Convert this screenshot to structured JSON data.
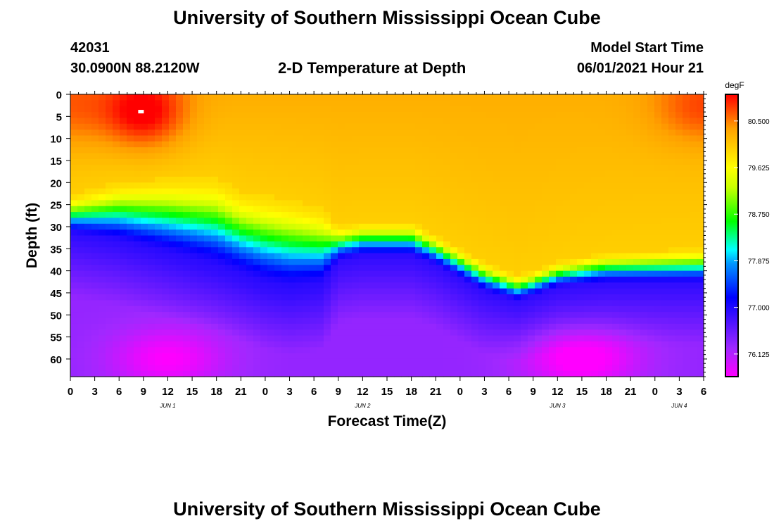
{
  "page": {
    "title_top": "University of Southern Mississippi Ocean Cube",
    "title_bottom": "University of Southern Mississippi Ocean Cube",
    "station_id": "42031",
    "location": "30.0900N  88.2120W",
    "subtitle": "2-D Temperature at Depth",
    "model_label": "Model Start Time",
    "model_time": "06/01/2021 Hour 21"
  },
  "chart_data": {
    "type": "heatmap",
    "title": "2-D Temperature at Depth",
    "xlabel": "Forecast Time(Z)",
    "ylabel": "Depth (ft)",
    "units": "degF",
    "x_range_hours": [
      0,
      78
    ],
    "y_range_ft": [
      0,
      64
    ],
    "x_ticks": [
      "0",
      "3",
      "6",
      "9",
      "12",
      "15",
      "18",
      "21",
      "0",
      "3",
      "6",
      "9",
      "12",
      "15",
      "18",
      "21",
      "0",
      "3",
      "6",
      "9",
      "12",
      "15",
      "18",
      "21",
      "0",
      "3",
      "6"
    ],
    "y_ticks": [
      0,
      5,
      10,
      15,
      20,
      25,
      30,
      35,
      40,
      45,
      50,
      55,
      60
    ],
    "date_labels": [
      {
        "text": "JUN 1",
        "hour": 12
      },
      {
        "text": "JUN 2",
        "hour": 36
      },
      {
        "text": "JUN 3",
        "hour": 60
      },
      {
        "text": "JUN 4",
        "hour": 75
      }
    ],
    "colorbar": {
      "min": 75.7,
      "max": 81.0,
      "tick_labels": [
        "80.500",
        "79.625",
        "78.750",
        "77.875",
        "77.000",
        "76.125"
      ],
      "tick_values": [
        80.5,
        79.625,
        78.75,
        77.875,
        77.0,
        76.125
      ]
    },
    "thermocline_upper_ft": [
      {
        "hour": 0,
        "depth": 23
      },
      {
        "hour": 6,
        "depth": 20
      },
      {
        "hour": 12,
        "depth": 19
      },
      {
        "hour": 18,
        "depth": 19
      },
      {
        "hour": 21,
        "depth": 22
      },
      {
        "hour": 27,
        "depth": 24
      },
      {
        "hour": 31,
        "depth": 26
      },
      {
        "hour": 33,
        "depth": 30
      },
      {
        "hour": 36,
        "depth": 29
      },
      {
        "hour": 42,
        "depth": 29
      },
      {
        "hour": 45,
        "depth": 32
      },
      {
        "hour": 51,
        "depth": 38
      },
      {
        "hour": 55,
        "depth": 41
      },
      {
        "hour": 57,
        "depth": 40
      },
      {
        "hour": 60,
        "depth": 38
      },
      {
        "hour": 66,
        "depth": 36
      },
      {
        "hour": 78,
        "depth": 35
      }
    ],
    "thermocline_lower_ft": [
      {
        "hour": 0,
        "depth": 32
      },
      {
        "hour": 6,
        "depth": 34
      },
      {
        "hour": 12,
        "depth": 37
      },
      {
        "hour": 18,
        "depth": 40
      },
      {
        "hour": 24,
        "depth": 44
      },
      {
        "hour": 27,
        "depth": 45
      },
      {
        "hour": 31,
        "depth": 44
      },
      {
        "hour": 33,
        "depth": 38
      },
      {
        "hour": 36,
        "depth": 37
      },
      {
        "hour": 42,
        "depth": 37
      },
      {
        "hour": 45,
        "depth": 39
      },
      {
        "hour": 51,
        "depth": 45
      },
      {
        "hour": 55,
        "depth": 47
      },
      {
        "hour": 57,
        "depth": 46
      },
      {
        "hour": 60,
        "depth": 44
      },
      {
        "hour": 66,
        "depth": 43
      },
      {
        "hour": 78,
        "depth": 43
      }
    ],
    "warm_spots": [
      {
        "hour": 9,
        "depth": 4,
        "temp": 81.0,
        "radius_h": 5,
        "radius_d": 8
      },
      {
        "hour": 78,
        "depth": 3,
        "temp": 80.6,
        "radius_h": 6,
        "radius_d": 8
      },
      {
        "hour": 0,
        "depth": 3,
        "temp": 80.5,
        "radius_h": 5,
        "radius_d": 9
      }
    ],
    "cold_spots": [
      {
        "hour": 12,
        "depth": 60,
        "temp": 75.7,
        "radius_h": 7,
        "radius_d": 7
      },
      {
        "hour": 63,
        "depth": 60,
        "temp": 75.6,
        "radius_h": 7,
        "radius_d": 7
      }
    ],
    "marker": {
      "hour": 8.7,
      "depth": 4
    }
  }
}
